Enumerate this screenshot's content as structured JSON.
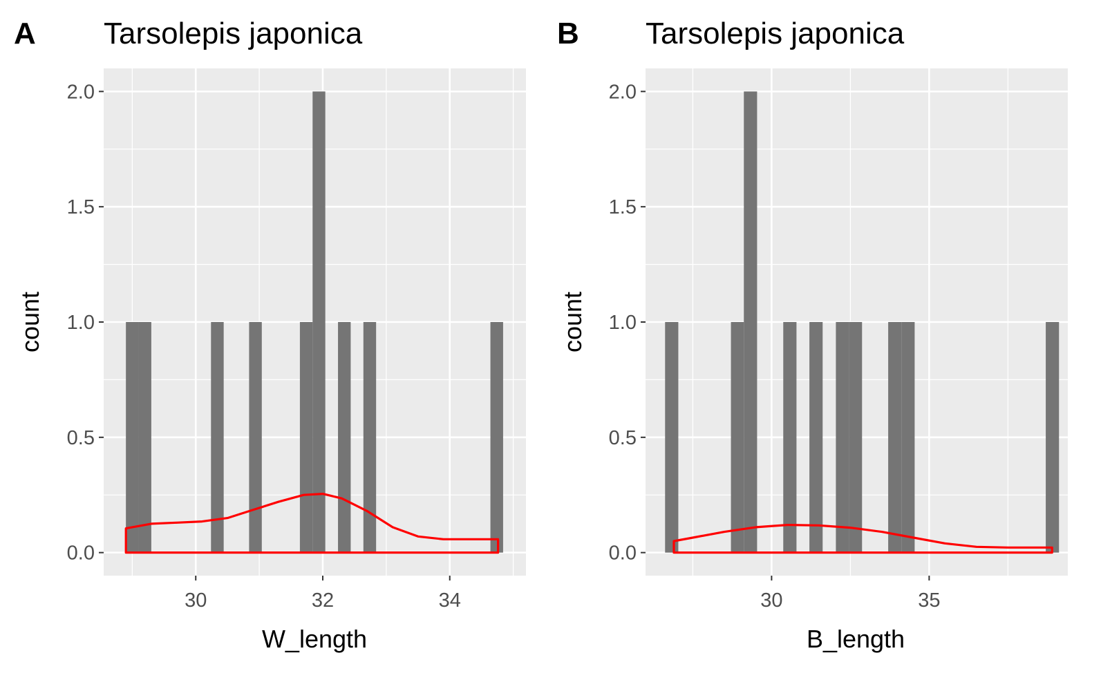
{
  "chart_data": [
    {
      "type": "histogram",
      "panel_label": "A",
      "title": "Tarsolepis japonica",
      "xlabel": "W_length",
      "ylabel": "count",
      "xlim": [
        28.55,
        35.2
      ],
      "ylim": [
        -0.1,
        2.1
      ],
      "x_ticks": [
        30,
        32,
        34
      ],
      "x_tick_labels": [
        "30",
        "32",
        "34"
      ],
      "y_ticks": [
        0,
        0.5,
        1,
        1.5,
        2
      ],
      "y_tick_labels": [
        "0.0",
        "0.5",
        "1.0",
        "1.5",
        "2.0"
      ],
      "bin_width": 0.2,
      "bars": [
        {
          "x0": 28.9,
          "x1": 29.1,
          "count": 1
        },
        {
          "x0": 29.1,
          "x1": 29.3,
          "count": 1
        },
        {
          "x0": 30.24,
          "x1": 30.44,
          "count": 1
        },
        {
          "x0": 30.84,
          "x1": 31.04,
          "count": 1
        },
        {
          "x0": 31.64,
          "x1": 31.84,
          "count": 1
        },
        {
          "x0": 31.84,
          "x1": 32.04,
          "count": 2
        },
        {
          "x0": 32.24,
          "x1": 32.44,
          "count": 1
        },
        {
          "x0": 32.64,
          "x1": 32.84,
          "count": 1
        },
        {
          "x0": 34.64,
          "x1": 34.84,
          "count": 1
        }
      ],
      "density_curve": {
        "color": "#ff0000",
        "x": [
          28.9,
          29.3,
          29.7,
          30.1,
          30.5,
          30.9,
          31.3,
          31.7,
          32.0,
          32.3,
          32.7,
          33.1,
          33.5,
          33.9,
          34.3,
          34.76
        ],
        "y": [
          0.105,
          0.125,
          0.13,
          0.135,
          0.15,
          0.185,
          0.22,
          0.25,
          0.255,
          0.235,
          0.18,
          0.11,
          0.07,
          0.058,
          0.058,
          0.058
        ]
      },
      "colors": {
        "bar": "#757575",
        "panel_bg": "#ebebeb",
        "grid": "#ffffff"
      },
      "grid": true
    },
    {
      "type": "histogram",
      "panel_label": "B",
      "title": "Tarsolepis japonica",
      "xlabel": "B_length",
      "ylabel": "count",
      "xlim": [
        26.0,
        39.4
      ],
      "ylim": [
        -0.1,
        2.1
      ],
      "x_ticks": [
        30,
        35
      ],
      "x_tick_labels": [
        "30",
        "35"
      ],
      "y_ticks": [
        0,
        0.5,
        1,
        1.5,
        2
      ],
      "y_tick_labels": [
        "0.0",
        "0.5",
        "1.0",
        "1.5",
        "2.0"
      ],
      "bin_width": 0.415,
      "bars": [
        {
          "x0": 26.62,
          "x1": 27.04,
          "count": 1
        },
        {
          "x0": 28.71,
          "x1": 29.12,
          "count": 1
        },
        {
          "x0": 29.12,
          "x1": 29.54,
          "count": 2
        },
        {
          "x0": 30.37,
          "x1": 30.79,
          "count": 1
        },
        {
          "x0": 31.2,
          "x1": 31.62,
          "count": 1
        },
        {
          "x0": 32.04,
          "x1": 32.45,
          "count": 1
        },
        {
          "x0": 32.45,
          "x1": 32.87,
          "count": 1
        },
        {
          "x0": 33.7,
          "x1": 34.12,
          "count": 1
        },
        {
          "x0": 34.12,
          "x1": 34.54,
          "count": 1
        },
        {
          "x0": 38.7,
          "x1": 39.12,
          "count": 1
        }
      ],
      "density_curve": {
        "color": "#ff0000",
        "x": [
          26.9,
          27.5,
          28.5,
          29.5,
          30.5,
          31.5,
          32.5,
          33.5,
          34.5,
          35.5,
          36.5,
          37.5,
          38.9
        ],
        "y": [
          0.05,
          0.065,
          0.09,
          0.11,
          0.12,
          0.118,
          0.108,
          0.09,
          0.065,
          0.04,
          0.025,
          0.022,
          0.022
        ]
      },
      "colors": {
        "bar": "#757575",
        "panel_bg": "#ebebeb",
        "grid": "#ffffff"
      },
      "grid": true
    }
  ]
}
